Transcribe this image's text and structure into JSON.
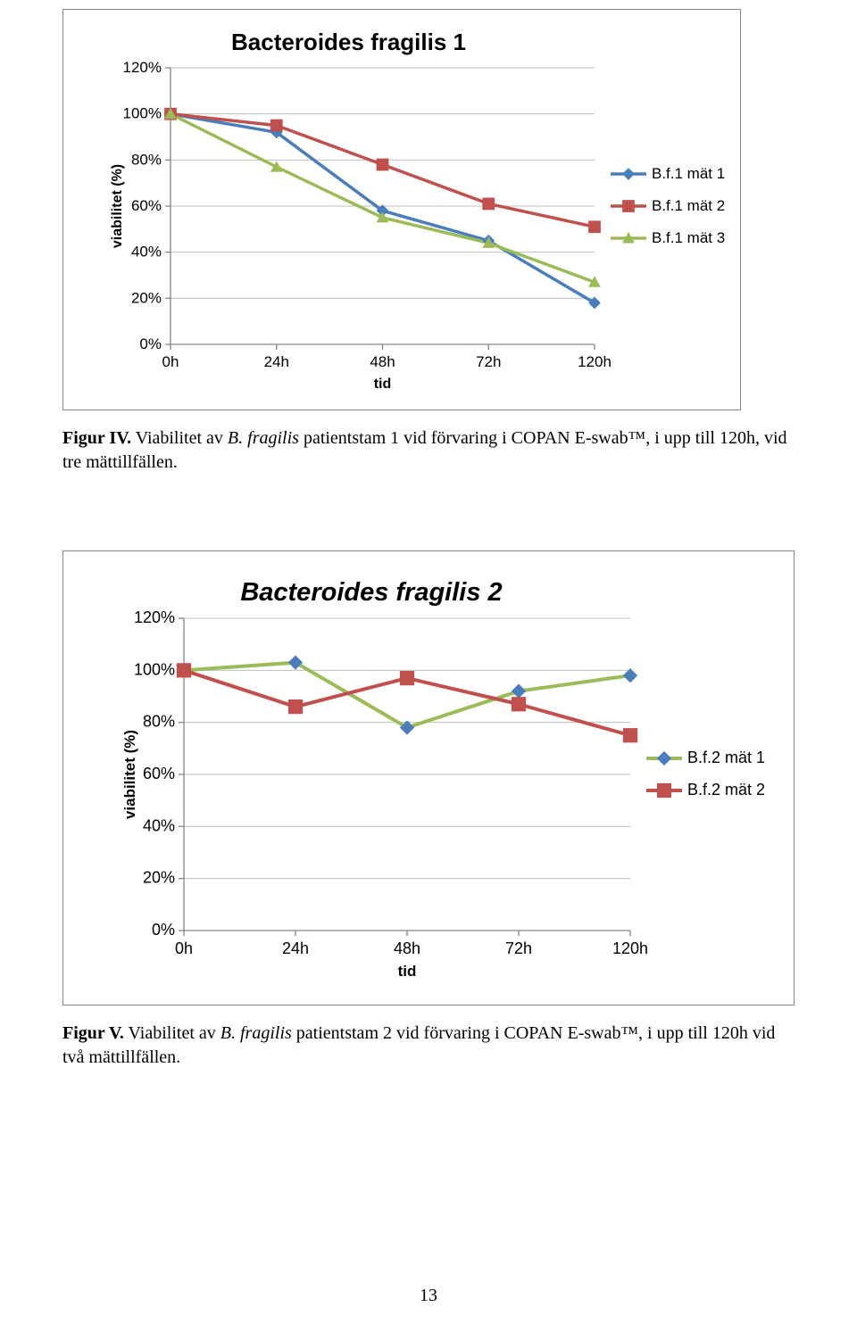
{
  "chart1": {
    "type": "line",
    "title": "Bacteroides fragilis 1",
    "title_fontsize": 26,
    "title_italic": false,
    "ylabel": "viabilitet (%)",
    "xlabel": "tid",
    "axis_label_fontsize": 16,
    "tick_fontsize": 17,
    "legend_fontsize": 17,
    "categories": [
      "0h",
      "24h",
      "48h",
      "72h",
      "120h"
    ],
    "yticks": [
      "0%",
      "20%",
      "40%",
      "60%",
      "80%",
      "100%",
      "120%"
    ],
    "ylim_min": 0,
    "ylim_max": 120,
    "grid_color": "#bfbfbf",
    "axis_color": "#868686",
    "background_color": "#ffffff",
    "marker_size": 11,
    "line_width": 3.5,
    "series": [
      {
        "name": "B.f.1 mät 1",
        "color": "#4a7ebb",
        "marker": "diamond",
        "values": [
          100,
          92,
          58,
          45,
          18
        ]
      },
      {
        "name": "B.f.1 mät 2",
        "color": "#c0504d",
        "marker": "square",
        "values": [
          100,
          95,
          78,
          61,
          51
        ]
      },
      {
        "name": "B.f.1 mät 3",
        "color": "#9bbb59",
        "marker": "triangle",
        "values": [
          100,
          77,
          55,
          44,
          27
        ]
      }
    ],
    "legend_marker_box_color": "#4a7ebb",
    "legend_marker_box_color2": "#c0504d",
    "legend_marker_box_color3": "#9bbb59"
  },
  "caption1": {
    "bold": "Figur IV.",
    "plain1": " Viabilitet av ",
    "italic": "B. fragilis",
    "plain2": " patientstam 1 vid förvaring i COPAN E-swab™, i upp till 120h, vid tre mättillfällen."
  },
  "chart2": {
    "type": "line",
    "title": "Bacteroides fragilis 2",
    "title_fontsize": 29,
    "title_italic": true,
    "ylabel": "viabilitet (%)",
    "xlabel": "tid",
    "axis_label_fontsize": 17,
    "tick_fontsize": 18,
    "legend_fontsize": 18,
    "categories": [
      "0h",
      "24h",
      "48h",
      "72h",
      "120h"
    ],
    "yticks": [
      "0%",
      "20%",
      "40%",
      "60%",
      "80%",
      "100%",
      "120%"
    ],
    "ylim_min": 0,
    "ylim_max": 120,
    "grid_color": "#bfbfbf",
    "axis_color": "#868686",
    "background_color": "#ffffff",
    "marker_size": 13,
    "line_width": 4,
    "series": [
      {
        "name": "B.f.2 mät 1",
        "color": "#9bbb59",
        "marker": "diamond",
        "marker_color": "#4a7ebb",
        "values": [
          100,
          103,
          78,
          92,
          98
        ]
      },
      {
        "name": "B.f.2 mät 2",
        "color": "#c0504d",
        "marker": "square",
        "marker_color": "#c0504d",
        "values": [
          100,
          86,
          97,
          87,
          75
        ]
      }
    ]
  },
  "caption2": {
    "bold": "Figur V.",
    "plain1": " Viabilitet av ",
    "italic": "B. fragilis",
    "plain2": " patientstam 2 vid förvaring i COPAN E-swab™, i upp till 120h vid två mättillfällen."
  },
  "page_number": "13"
}
